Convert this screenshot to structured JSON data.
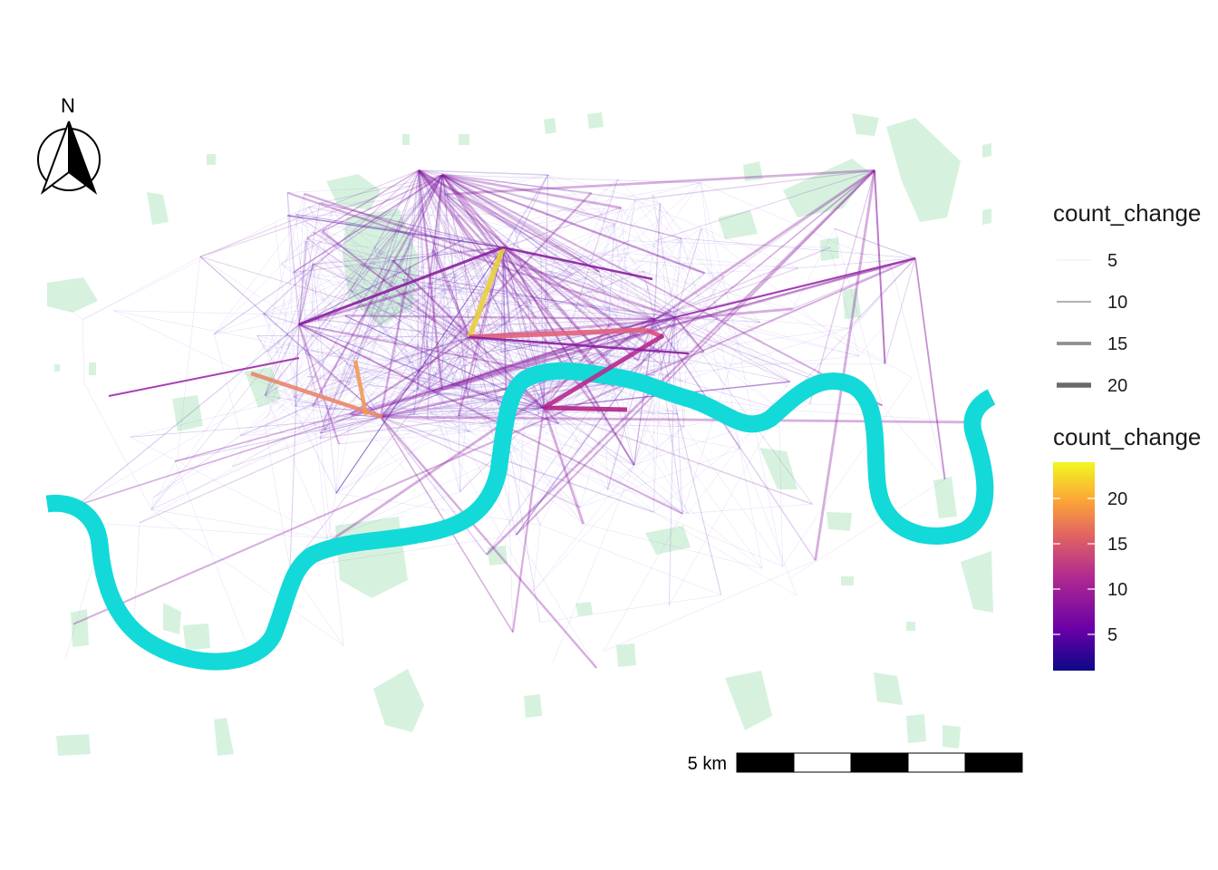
{
  "map": {
    "north_label": "N",
    "scale_label": "5 km",
    "colors": {
      "river": "#14d9d9",
      "park": "#d6f2de",
      "scale_black": "#000000",
      "scale_white": "#ffffff"
    }
  },
  "legend": {
    "width_title": "count_change",
    "width_entries": [
      {
        "label": "5",
        "value": 5
      },
      {
        "label": "10",
        "value": 10
      },
      {
        "label": "15",
        "value": 15
      },
      {
        "label": "20",
        "value": 20
      }
    ],
    "color_title": "count_change",
    "color_ticks": [
      {
        "label": "20",
        "value": 20
      },
      {
        "label": "15",
        "value": 15
      },
      {
        "label": "10",
        "value": 10
      },
      {
        "label": "5",
        "value": 5
      }
    ],
    "color_range": [
      1,
      24
    ],
    "color_stops": [
      "#0d0887",
      "#6a00a8",
      "#b12a90",
      "#e16462",
      "#fca636",
      "#f0f921"
    ]
  }
}
